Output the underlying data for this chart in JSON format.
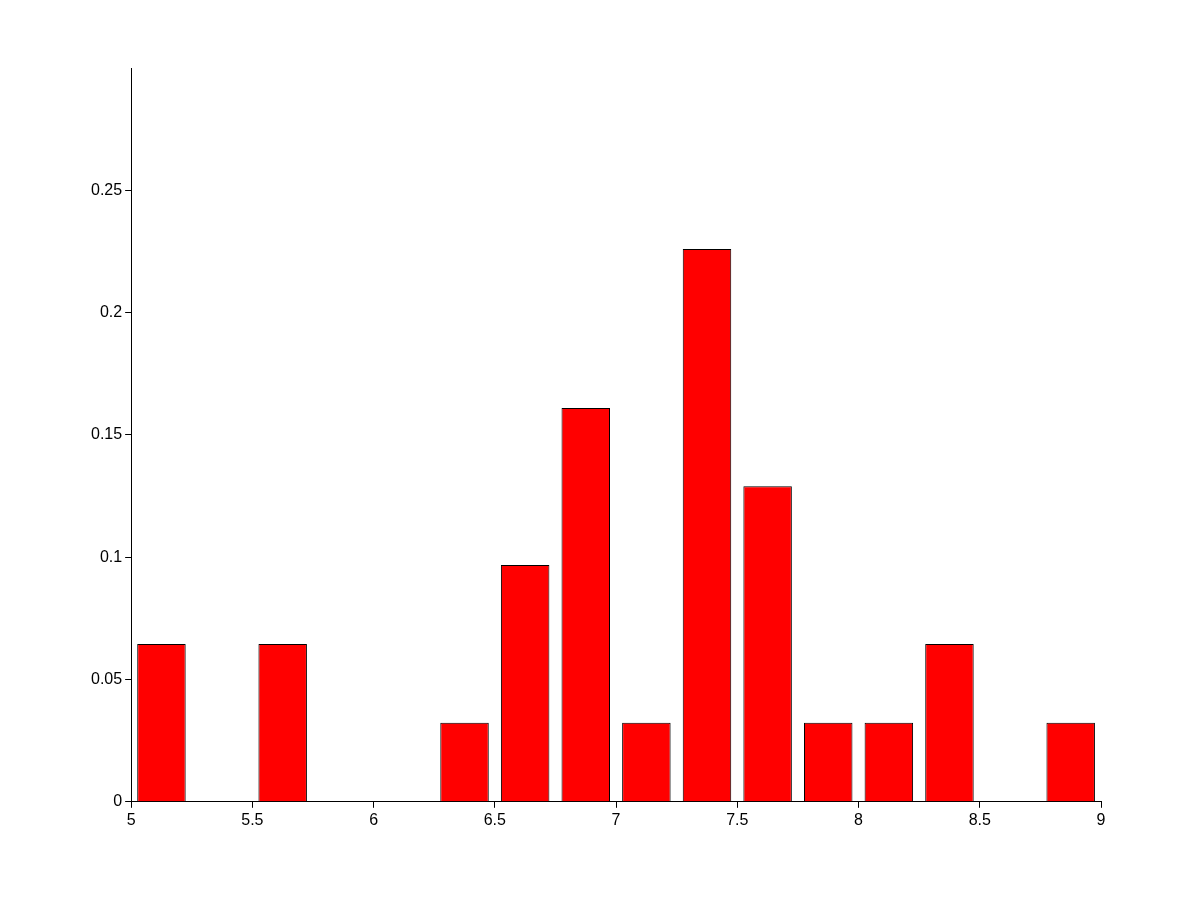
{
  "chart_data": {
    "type": "bar",
    "x": [
      5.125,
      5.375,
      5.625,
      5.875,
      6.125,
      6.375,
      6.625,
      6.875,
      7.125,
      7.375,
      7.625,
      7.875,
      8.125,
      8.375,
      8.625,
      8.875
    ],
    "values": [
      0.0645,
      0,
      0.0645,
      0,
      0,
      0.0323,
      0.0968,
      0.161,
      0.0323,
      0.226,
      0.129,
      0.0323,
      0.0323,
      0.0645,
      0,
      0.0323
    ],
    "color": "#ff0000",
    "xlim": [
      5,
      9
    ],
    "xticks": [
      5,
      5.5,
      6,
      6.5,
      7,
      7.5,
      8,
      8.5,
      9
    ],
    "ylim": [
      0,
      0.3
    ],
    "yticks": [
      0,
      0.05,
      0.1,
      0.15,
      0.2,
      0.25
    ],
    "grid": false,
    "legend": false
  }
}
